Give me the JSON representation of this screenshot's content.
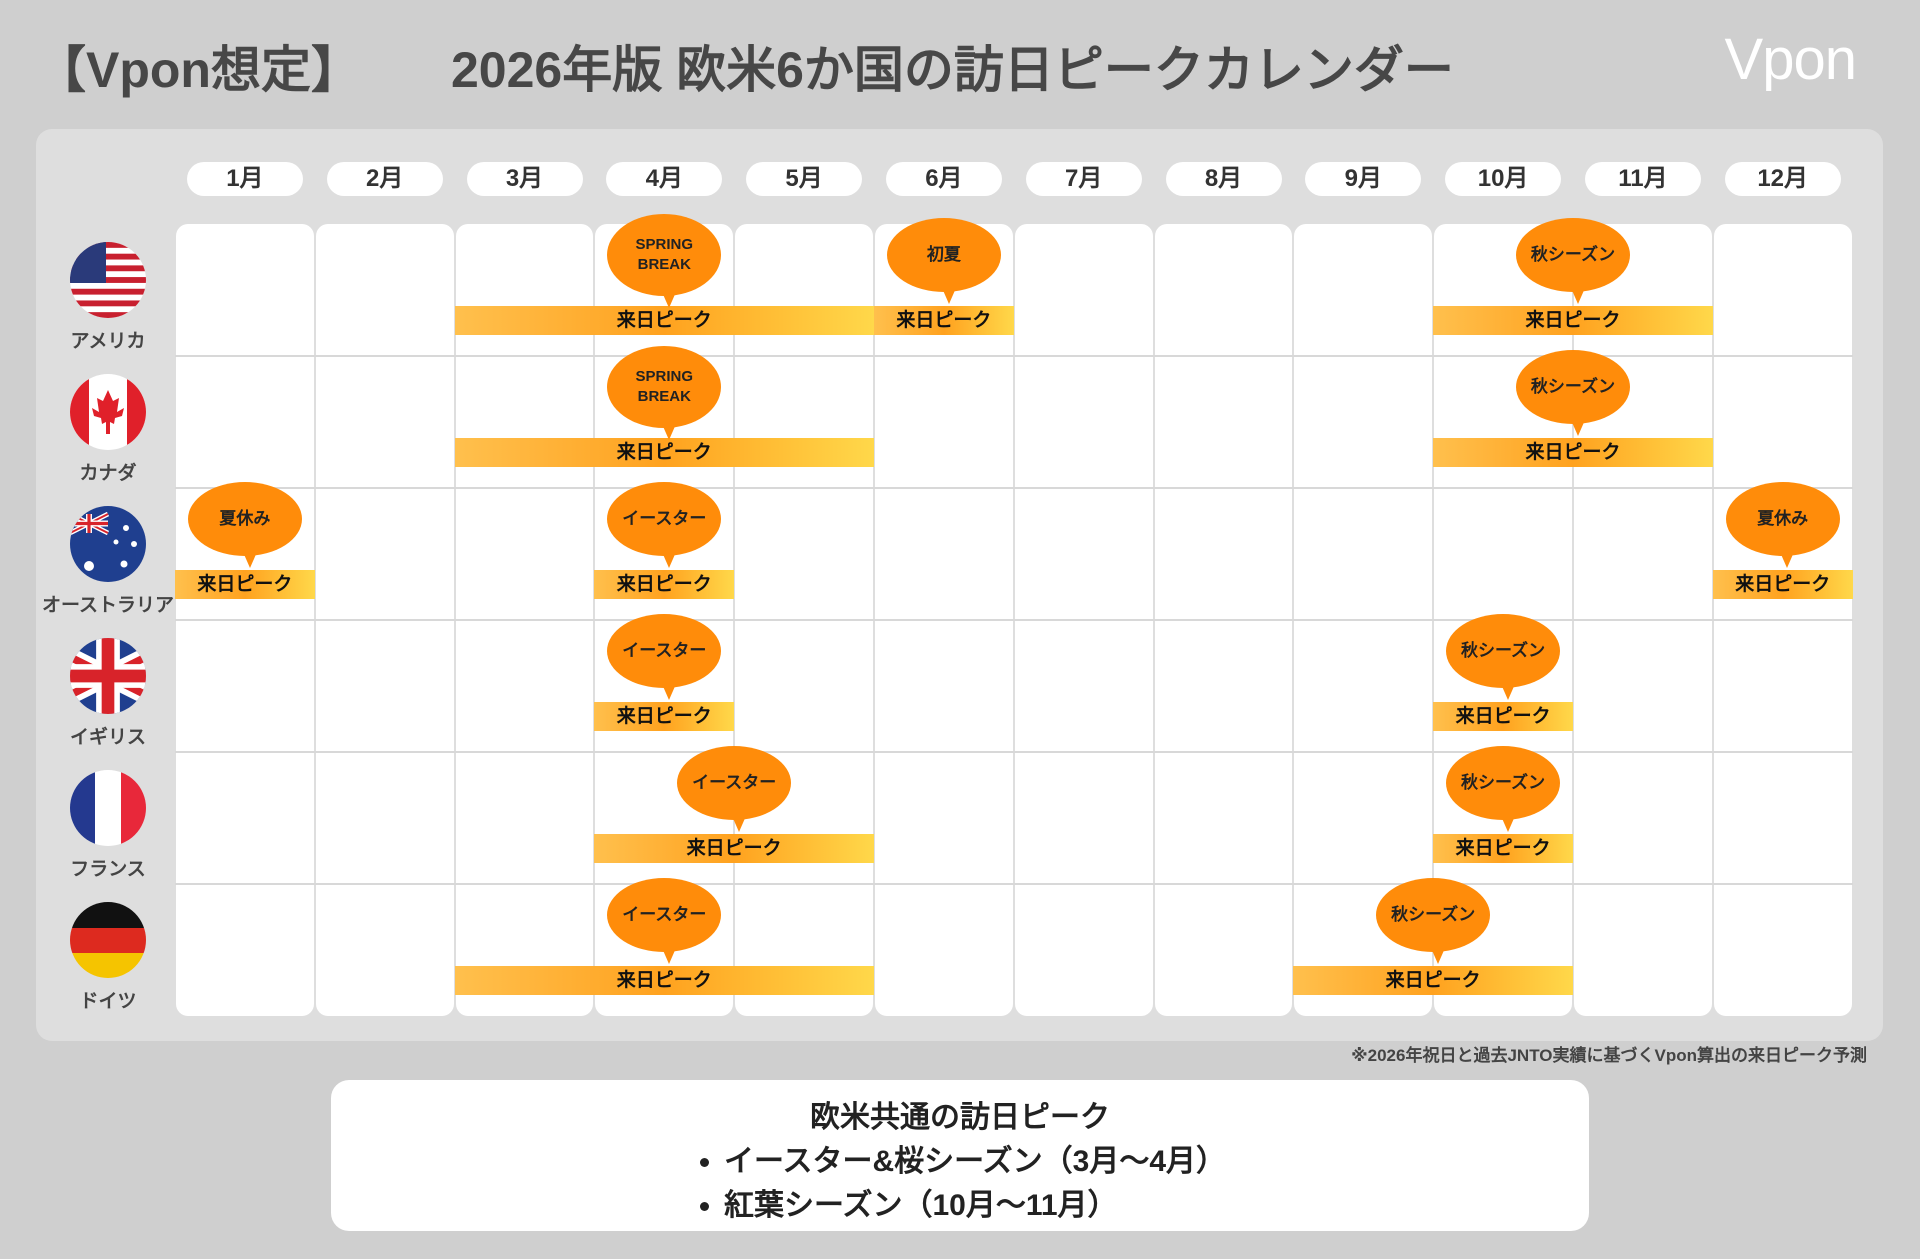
{
  "header": {
    "tag": "【Vpon想定】",
    "title": "2026年版 欧米6か国の訪日ピークカレンダー",
    "logo": "Vpon"
  },
  "months": [
    "1月",
    "2月",
    "3月",
    "4月",
    "5月",
    "6月",
    "7月",
    "8月",
    "9月",
    "10月",
    "11月",
    "12月"
  ],
  "countries": [
    {
      "name": "アメリカ",
      "events": [
        {
          "label": "SPRING BREAK",
          "peak": "来日ピーク",
          "span": [
            3,
            5
          ]
        },
        {
          "label": "初夏",
          "peak": "来日ピーク",
          "span": [
            6,
            6
          ]
        },
        {
          "label": "秋シーズン",
          "peak": "来日ピーク",
          "span": [
            10,
            11
          ]
        }
      ]
    },
    {
      "name": "カナダ",
      "events": [
        {
          "label": "SPRING BREAK",
          "peak": "来日ピーク",
          "span": [
            3,
            5
          ]
        },
        {
          "label": "秋シーズン",
          "peak": "来日ピーク",
          "span": [
            10,
            11
          ]
        }
      ]
    },
    {
      "name": "オーストラリア",
      "events": [
        {
          "label": "夏休み",
          "peak": "来日ピーク",
          "span": [
            1,
            1
          ]
        },
        {
          "label": "イースター",
          "peak": "来日ピーク",
          "span": [
            4,
            4
          ]
        },
        {
          "label": "夏休み",
          "peak": "来日ピーク",
          "span": [
            12,
            12
          ]
        }
      ]
    },
    {
      "name": "イギリス",
      "events": [
        {
          "label": "イースター",
          "peak": "来日ピーク",
          "span": [
            4,
            4
          ]
        },
        {
          "label": "秋シーズン",
          "peak": "来日ピーク",
          "span": [
            10,
            10
          ]
        }
      ]
    },
    {
      "name": "フランス",
      "events": [
        {
          "label": "イースター",
          "peak": "来日ピーク",
          "span": [
            4,
            5
          ]
        },
        {
          "label": "秋シーズン",
          "peak": "来日ピーク",
          "span": [
            10,
            10
          ]
        }
      ]
    },
    {
      "name": "ドイツ",
      "events": [
        {
          "label": "イースター",
          "peak": "来日ピーク",
          "span": [
            3,
            5
          ]
        },
        {
          "label": "秋シーズン",
          "peak": "来日ピーク",
          "span": [
            9,
            10
          ]
        }
      ]
    }
  ],
  "footnote": "※2026年祝日と過去JNTO実績に基づくVpon算出の来日ピーク予測",
  "summary": {
    "title": "欧米共通の訪日ピーク",
    "items": [
      "イースター&桜シーズン（3月〜4月）",
      "紅葉シーズン（10月〜11月）"
    ]
  }
}
